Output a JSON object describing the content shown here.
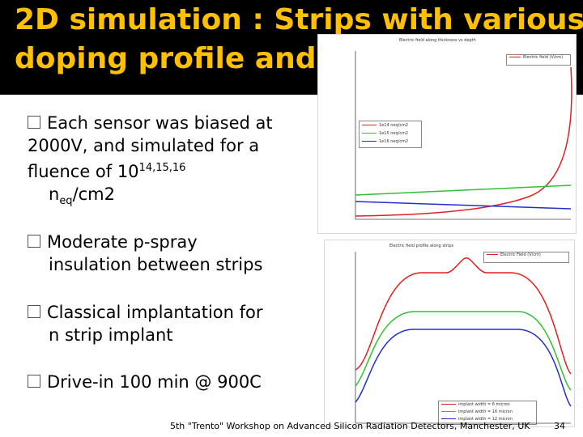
{
  "title": {
    "line1": "2D simulation : Strips with various",
    "line2": "doping profile and geometry",
    "color": "#ffc000"
  },
  "bullets": [
    {
      "text": "Each sensor was biased at 2000V, and simulated for a fluence of 10",
      "sup": "14,15,16",
      "unit_prefix": "n",
      "unit_sub": "eq",
      "unit_suffix": "/cm2"
    },
    {
      "line1": "Moderate p-spray",
      "line2": "insulation between strips"
    },
    {
      "line1": "Classical implantation for",
      "line2": "n strip implant"
    },
    {
      "line1": "Drive-in 100 min @ 900C"
    }
  ],
  "plot1": {
    "title": "Electric field along thickness vs depth",
    "legend_top": "Electric field (V/cm)",
    "legend_series": [
      "1e14 neq/cm2",
      "1e15 neq/cm2",
      "1e16 neq/cm2"
    ],
    "colors": {
      "red": "#e02020",
      "green": "#30c030",
      "blue": "#2030d0"
    }
  },
  "plot2": {
    "title": "Electric field profile along strips",
    "legend_top": "Electric Field (V/cm)",
    "legend_series": [
      "implant width = 6 micron",
      "implant width = 16 micron",
      "implant width = 12 micron"
    ]
  },
  "footer": {
    "text": "5th \"Trento\" Workshop on Advanced Silicon Radiation Detectors, Manchester, UK",
    "page": "34"
  }
}
